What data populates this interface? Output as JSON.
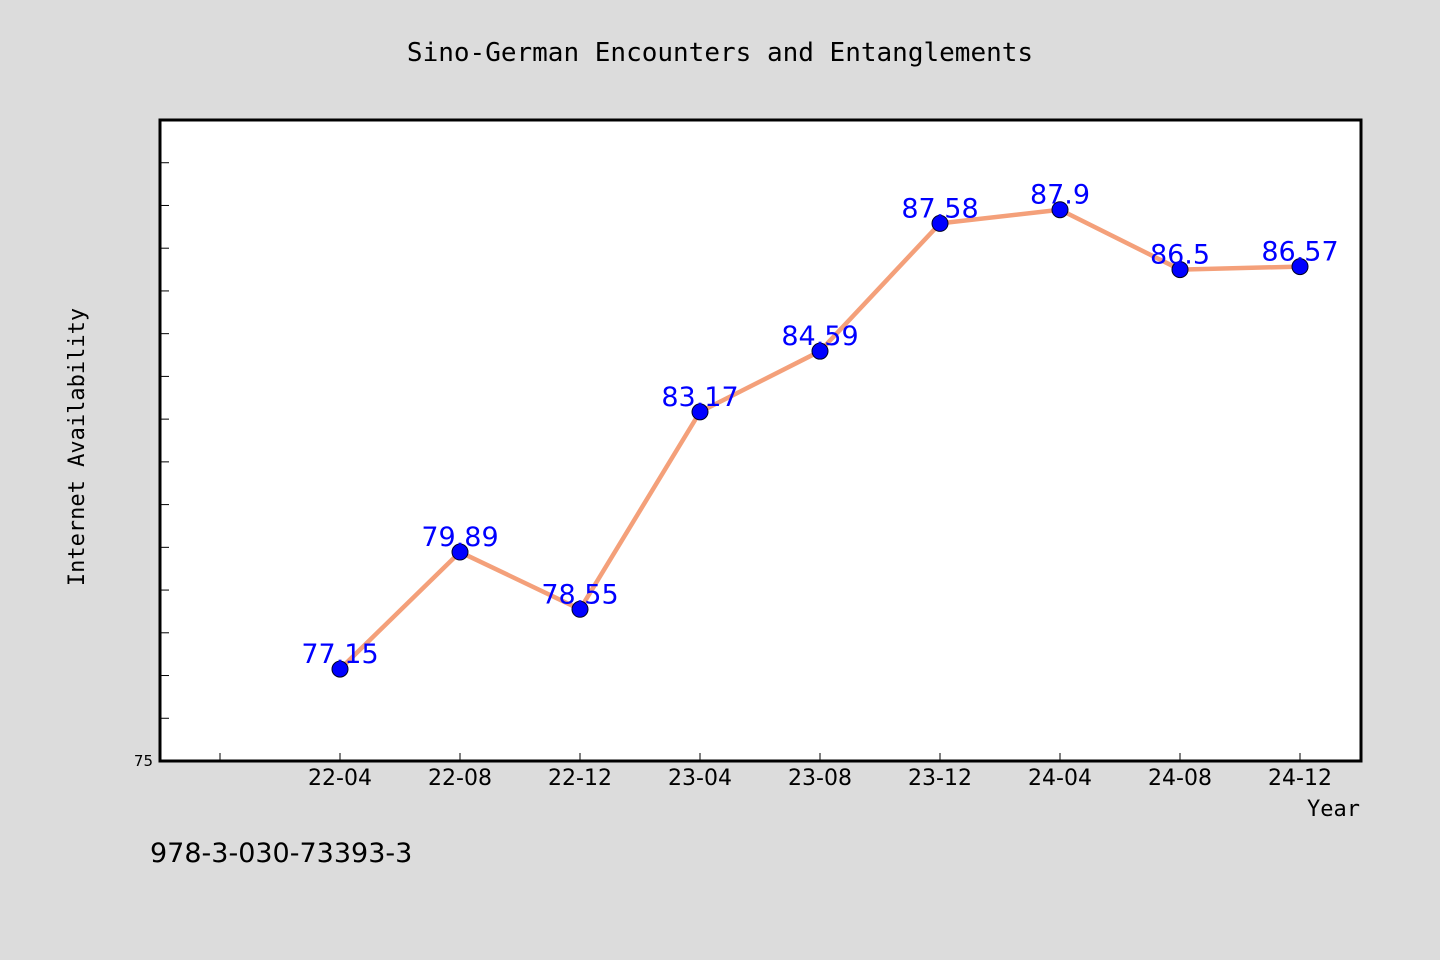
{
  "chart_data": {
    "type": "line",
    "title": "Sino-German Encounters and Entanglements",
    "xlabel": "Year",
    "ylabel": "Internet Availability",
    "categories": [
      "22-04",
      "22-08",
      "22-12",
      "23-04",
      "23-08",
      "23-12",
      "24-04",
      "24-08",
      "24-12"
    ],
    "series": [
      {
        "values": [
          77.15,
          79.89,
          78.55,
          83.17,
          84.59,
          87.58,
          87.9,
          86.5,
          86.57
        ],
        "labels": [
          "77.15",
          "79.89",
          "78.55",
          "83.17",
          "84.59",
          "87.58",
          "87.9",
          "86.5",
          "86.57"
        ],
        "line_color": "#f4a07a",
        "marker_color": "#0000ff"
      }
    ],
    "ylim": [
      75,
      90
    ],
    "y_tick_labels": [
      "75"
    ],
    "grid": false,
    "legend": "none"
  },
  "footnote": "978-3-030-73393-3",
  "colors": {
    "background": "#dcdcdc",
    "plot_background": "#ffffff",
    "data_label": "#0000ff"
  }
}
